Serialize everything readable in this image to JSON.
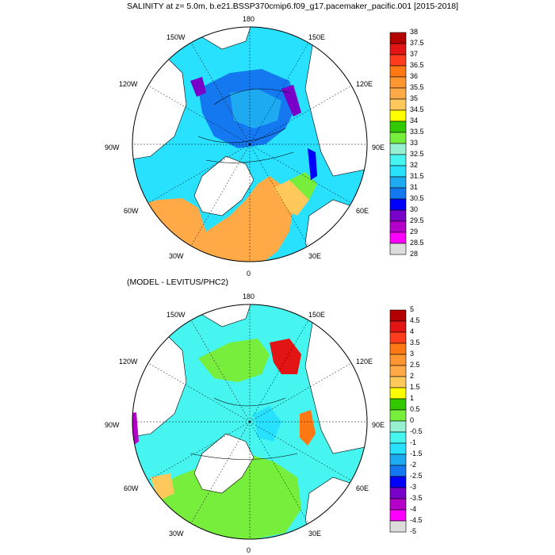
{
  "figure": {
    "main_title": "SALINITY at z=   5.0m, b.e21.BSSP370cmip6.f09_g17.pacemaker_pacific.001 [2015-2018]",
    "diff_title": "(MODEL - LEVITUS/PHC2)"
  },
  "lon_labels": [
    "180",
    "150E",
    "120E",
    "90E",
    "60E",
    "30E",
    "0",
    "30W",
    "60W",
    "90W",
    "120W",
    "150W"
  ],
  "colorbar_top": {
    "labels": [
      "38",
      "37.5",
      "37",
      "36.5",
      "36",
      "35.5",
      "35",
      "34.5",
      "34",
      "33.5",
      "33",
      "32.5",
      "32",
      "31.5",
      "31",
      "30.5",
      "30",
      "29.5",
      "29",
      "28.5",
      "28"
    ],
    "colors": [
      "#b40000",
      "#e21414",
      "#ff3c1e",
      "#ff7814",
      "#ff9632",
      "#ffaa46",
      "#ffc85a",
      "#ffff00",
      "#32c800",
      "#78ee3c",
      "#96f0d2",
      "#46f5f0",
      "#28e1ff",
      "#1eaaf0",
      "#1478f0",
      "#0000ff",
      "#7800c8",
      "#b400c8",
      "#ff00ff",
      "#dcdcdc",
      "#808080"
    ]
  },
  "colorbar_bottom": {
    "labels": [
      "5",
      "4.5",
      "4",
      "3.5",
      "3",
      "2.5",
      "2",
      "1.5",
      "1",
      "0.5",
      "0",
      "-0.5",
      "-1",
      "-1.5",
      "-2",
      "-2.5",
      "-3",
      "-3.5",
      "-4",
      "-4.5",
      "-5"
    ],
    "colors": [
      "#b40000",
      "#e21414",
      "#ff3c1e",
      "#ff7814",
      "#ff9632",
      "#ffaa46",
      "#ffc85a",
      "#ffff00",
      "#32c800",
      "#78ee3c",
      "#96f0d2",
      "#46f5f0",
      "#28e1ff",
      "#1eaaf0",
      "#1478f0",
      "#0000ff",
      "#7800c8",
      "#b400c8",
      "#ff00ff",
      "#dcdcdc",
      "#808080"
    ]
  }
}
